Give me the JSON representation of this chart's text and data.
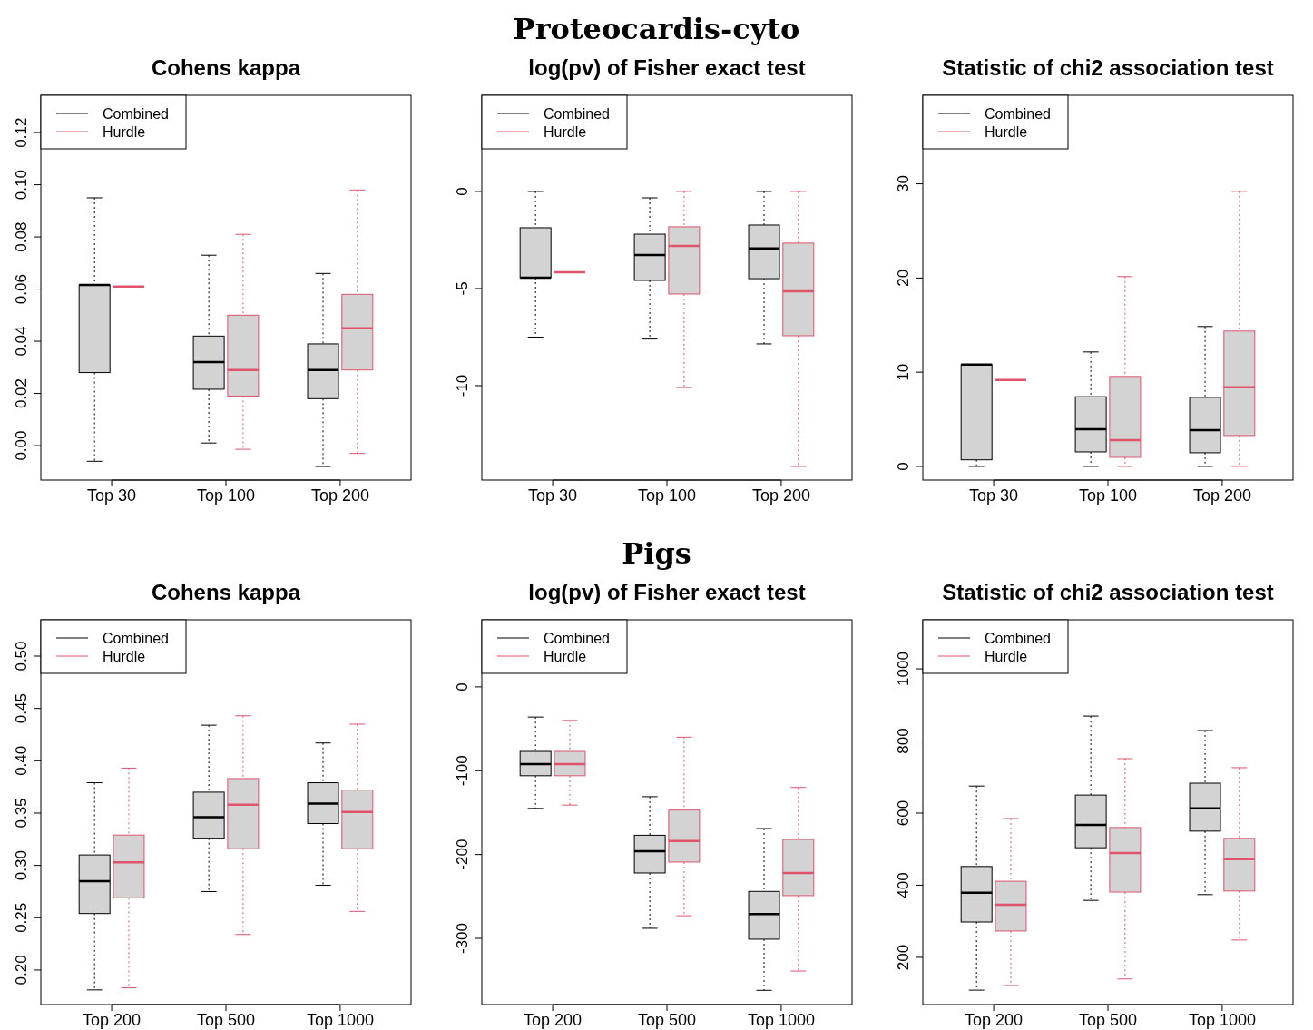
{
  "chart_data": [
    {
      "type": "box",
      "title": "Cohens kappa",
      "annotations": [
        "Proteocardis-cyto"
      ],
      "categories": [
        "Top 30",
        "Top 100",
        "Top 200"
      ],
      "ylim": [
        -0.0132,
        0.1343
      ],
      "yticks": [
        {
          "value": 0,
          "label": "0.00"
        },
        {
          "value": 0.02,
          "label": "0.02"
        },
        {
          "value": 0.04,
          "label": "0.04"
        },
        {
          "value": 0.06,
          "label": "0.06"
        },
        {
          "value": 0.08,
          "label": "0.08"
        },
        {
          "value": 0.1,
          "label": "0.10"
        },
        {
          "value": 0.12,
          "label": "0.12"
        }
      ],
      "legend": "top left",
      "series": [
        {
          "name": "Combined",
          "color": "#000000",
          "boxes": [
            {
              "low": -0.006,
              "q1": 0.028,
              "median": 0.0616,
              "q3": 0.0616,
              "high": 0.095
            },
            {
              "low": 0.001,
              "q1": 0.0216,
              "median": 0.032,
              "q3": 0.042,
              "high": 0.073
            },
            {
              "low": -0.008,
              "q1": 0.018,
              "median": 0.029,
              "q3": 0.039,
              "high": 0.066
            }
          ]
        },
        {
          "name": "Hurdle",
          "color": "#df536b",
          "boxes": [
            {
              "low": 0.061,
              "q1": 0.061,
              "median": 0.061,
              "q3": 0.061,
              "high": 0.061
            },
            {
              "low": -0.0014,
              "q1": 0.019,
              "median": 0.029,
              "q3": 0.05,
              "high": 0.081
            },
            {
              "low": -0.003,
              "q1": 0.029,
              "median": 0.045,
              "q3": 0.058,
              "high": 0.098
            }
          ]
        }
      ]
    },
    {
      "type": "box",
      "title": "log(pv) of Fisher exact test",
      "categories": [
        "Top 30",
        "Top 100",
        "Top 200"
      ],
      "ylim": [
        -14.86,
        4.95
      ],
      "yticks": [
        0,
        -5,
        -10
      ],
      "legend": "top left",
      "series": [
        {
          "name": "Combined",
          "color": "#000000",
          "boxes": [
            {
              "low": -7.5,
              "q1": -4.44,
              "median": -4.44,
              "q3": -1.87,
              "high": 0
            },
            {
              "low": -7.6,
              "q1": -4.58,
              "median": -3.27,
              "q3": -2.2,
              "high": -0.33
            },
            {
              "low": -7.85,
              "q1": -4.49,
              "median": -2.94,
              "q3": -1.73,
              "high": 0
            }
          ]
        },
        {
          "name": "Hurdle",
          "color": "#df536b",
          "boxes": [
            {
              "low": -4.16,
              "q1": -4.16,
              "median": -4.16,
              "q3": -4.16,
              "high": -4.16
            },
            {
              "low": -10.1,
              "q1": -5.28,
              "median": -2.8,
              "q3": -1.82,
              "high": 0
            },
            {
              "low": -14.16,
              "q1": -7.43,
              "median": -5.14,
              "q3": -2.66,
              "high": 0
            }
          ]
        }
      ]
    },
    {
      "type": "box",
      "title": "Statistic of chi2 association test",
      "categories": [
        "Top 30",
        "Top 100",
        "Top 200"
      ],
      "ylim": [
        -1.45,
        39.4
      ],
      "yticks": [
        0,
        10,
        20,
        30
      ],
      "legend": "top left",
      "series": [
        {
          "name": "Combined",
          "color": "#000000",
          "boxes": [
            {
              "low": 0,
              "q1": 0.7,
              "median": 10.8,
              "q3": 10.8,
              "high": 10.8
            },
            {
              "low": 0,
              "q1": 1.54,
              "median": 3.95,
              "q3": 7.4,
              "high": 12.15
            },
            {
              "low": 0,
              "q1": 1.45,
              "median": 3.86,
              "q3": 7.33,
              "high": 14.85
            }
          ]
        },
        {
          "name": "Hurdle",
          "color": "#df536b",
          "boxes": [
            {
              "low": 9.16,
              "q1": 9.16,
              "median": 9.16,
              "q3": 9.16,
              "high": 9.16
            },
            {
              "low": 0,
              "q1": 0.96,
              "median": 2.8,
              "q3": 9.55,
              "high": 20.15
            },
            {
              "low": 0,
              "q1": 3.28,
              "median": 8.39,
              "q3": 14.37,
              "high": 29.2
            }
          ]
        }
      ]
    },
    {
      "type": "box",
      "title": "Cohens kappa",
      "annotations": [
        "Pigs"
      ],
      "categories": [
        "Top 200",
        "Top 500",
        "Top 1000"
      ],
      "ylim": [
        0.167,
        0.5347
      ],
      "yticks": [
        {
          "value": 0.2,
          "label": "0.20"
        },
        0.25,
        {
          "value": 0.3,
          "label": "0.30"
        },
        0.35,
        {
          "value": 0.4,
          "label": "0.40"
        },
        0.45,
        {
          "value": 0.5,
          "label": "0.50"
        }
      ],
      "legend": "top left",
      "series": [
        {
          "name": "Combined",
          "color": "#000000",
          "boxes": [
            {
              "low": 0.181,
              "q1": 0.254,
              "median": 0.285,
              "q3": 0.31,
              "high": 0.379
            },
            {
              "low": 0.275,
              "q1": 0.326,
              "median": 0.346,
              "q3": 0.37,
              "high": 0.434
            },
            {
              "low": 0.281,
              "q1": 0.34,
              "median": 0.359,
              "q3": 0.379,
              "high": 0.417
            }
          ]
        },
        {
          "name": "Hurdle",
          "color": "#df536b",
          "boxes": [
            {
              "low": 0.183,
              "q1": 0.269,
              "median": 0.303,
              "q3": 0.329,
              "high": 0.393
            },
            {
              "low": 0.234,
              "q1": 0.316,
              "median": 0.358,
              "q3": 0.383,
              "high": 0.443
            },
            {
              "low": 0.256,
              "q1": 0.316,
              "median": 0.351,
              "q3": 0.372,
              "high": 0.435
            }
          ]
        }
      ]
    },
    {
      "type": "box",
      "title": "log(pv) of Fisher exact test",
      "categories": [
        "Top 200",
        "Top 500",
        "Top 1000"
      ],
      "ylim": [
        -379,
        80
      ],
      "yticks": [
        0,
        -100,
        -200,
        -300
      ],
      "legend": "top left",
      "series": [
        {
          "name": "Combined",
          "color": "#000000",
          "boxes": [
            {
              "low": -145,
              "q1": -106,
              "median": -92,
              "q3": -77,
              "high": -36
            },
            {
              "low": -288,
              "q1": -222,
              "median": -196,
              "q3": -177,
              "high": -131
            },
            {
              "low": -362,
              "q1": -301,
              "median": -271,
              "q3": -244,
              "high": -169
            }
          ]
        },
        {
          "name": "Hurdle",
          "color": "#df536b",
          "boxes": [
            {
              "low": -141,
              "q1": -106,
              "median": -92,
              "q3": -77,
              "high": -40
            },
            {
              "low": -273,
              "q1": -209,
              "median": -184,
              "q3": -147,
              "high": -60
            },
            {
              "low": -339,
              "q1": -249,
              "median": -222,
              "q3": -182,
              "high": -120
            }
          ]
        }
      ]
    },
    {
      "type": "box",
      "title": "Statistic of chi2 association test",
      "categories": [
        "Top 200",
        "Top 500",
        "Top 1000"
      ],
      "ylim": [
        69,
        1136
      ],
      "yticks": [
        200,
        400,
        600,
        800,
        1000
      ],
      "legend": "top left",
      "series": [
        {
          "name": "Combined",
          "color": "#000000",
          "boxes": [
            {
              "low": 109,
              "q1": 298,
              "median": 379,
              "q3": 452,
              "high": 675
            },
            {
              "low": 358,
              "q1": 504,
              "median": 567,
              "q3": 650,
              "high": 869
            },
            {
              "low": 374,
              "q1": 550,
              "median": 613,
              "q3": 683,
              "high": 829
            }
          ]
        },
        {
          "name": "Hurdle",
          "color": "#df536b",
          "boxes": [
            {
              "low": 122,
              "q1": 273,
              "median": 346,
              "q3": 411,
              "high": 585
            },
            {
              "low": 140,
              "q1": 381,
              "median": 489,
              "q3": 560,
              "high": 751
            },
            {
              "low": 248,
              "q1": 384,
              "median": 472,
              "q3": 530,
              "high": 726
            }
          ]
        }
      ]
    }
  ]
}
